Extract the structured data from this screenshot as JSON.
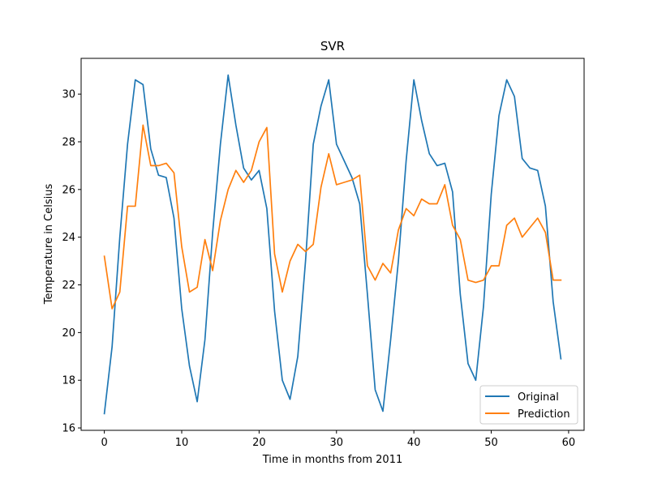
{
  "chart_data": {
    "type": "line",
    "title": "SVR",
    "xlabel": "Time in months from 2011",
    "ylabel": "Temperature in Celsius",
    "xlim": [
      -3,
      62
    ],
    "ylim": [
      15.9,
      31.5
    ],
    "xticks": [
      0,
      10,
      20,
      30,
      40,
      50,
      60
    ],
    "yticks": [
      16,
      18,
      20,
      22,
      24,
      26,
      28,
      30
    ],
    "grid": false,
    "legend_position": "lower-right",
    "series": [
      {
        "name": "Original",
        "color": "#1f77b4",
        "values": [
          16.6,
          19.4,
          24.0,
          27.9,
          30.6,
          30.4,
          27.7,
          26.6,
          26.5,
          24.8,
          21.0,
          18.6,
          17.1,
          19.7,
          24.2,
          27.9,
          30.8,
          28.7,
          26.9,
          26.4,
          26.8,
          25.2,
          20.9,
          18.0,
          17.2,
          19.0,
          23.0,
          27.9,
          29.5,
          30.6,
          27.9,
          27.2,
          26.5,
          25.4,
          21.6,
          17.6,
          16.7,
          19.7,
          23.0,
          27.2,
          30.6,
          28.9,
          27.5,
          27.0,
          27.1,
          25.9,
          21.6,
          18.7,
          18.0,
          21.1,
          25.8,
          29.1,
          30.6,
          29.9,
          27.3,
          26.9,
          26.8,
          25.3,
          21.3,
          18.9
        ]
      },
      {
        "name": "Prediction",
        "color": "#ff7f0e",
        "values": [
          23.2,
          21.0,
          21.7,
          25.3,
          25.3,
          28.7,
          27.0,
          27.0,
          27.1,
          26.7,
          23.6,
          21.7,
          21.9,
          23.9,
          22.6,
          24.7,
          26.0,
          26.8,
          26.3,
          26.8,
          28.0,
          28.6,
          23.3,
          21.7,
          23.0,
          23.7,
          23.4,
          23.7,
          26.1,
          27.5,
          26.2,
          26.3,
          26.4,
          26.6,
          22.8,
          22.2,
          22.9,
          22.5,
          24.3,
          25.2,
          24.9,
          25.6,
          25.4,
          25.4,
          26.2,
          24.5,
          23.9,
          22.2,
          22.1,
          22.2,
          22.8,
          22.8,
          24.5,
          24.8,
          24.0,
          24.4,
          24.8,
          24.2,
          22.2,
          22.2
        ]
      }
    ]
  }
}
